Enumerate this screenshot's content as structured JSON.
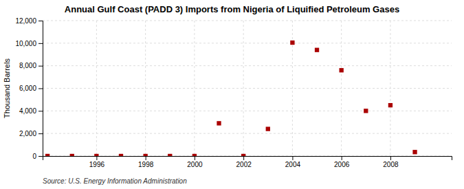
{
  "chart_data": {
    "type": "scatter",
    "title": "Annual Gulf Coast (PADD 3) Imports from Nigeria of Liquified Petroleum Gases",
    "ylabel": "Thousand Barrels",
    "annotations": [
      "Source: U.S. Energy Information Administration"
    ],
    "x": [
      1994,
      1995,
      1996,
      1997,
      1998,
      1999,
      2000,
      2001,
      2002,
      2003,
      2004,
      2005,
      2006,
      2007,
      2008,
      2009
    ],
    "values": [
      0,
      0,
      0,
      0,
      0,
      0,
      0,
      2900,
      0,
      2400,
      10050,
      9400,
      7600,
      4000,
      4500,
      350
    ],
    "color": "#aa0000",
    "marker": "square",
    "xlim": [
      1993.8,
      2010.5
    ],
    "xticks": [
      1996,
      1998,
      2000,
      2002,
      2004,
      2006,
      2008
    ],
    "ylim": [
      0,
      12000
    ],
    "yticks": [
      0,
      {
        "value": 2000,
        "label": "2,000"
      },
      {
        "value": 4000,
        "label": "4,000"
      },
      {
        "value": 6000,
        "label": "6,000"
      },
      {
        "value": 8000,
        "label": "8,000"
      },
      {
        "value": 10000,
        "label": "10,000"
      },
      {
        "value": 12000,
        "label": "12,000"
      }
    ],
    "grid": true
  }
}
